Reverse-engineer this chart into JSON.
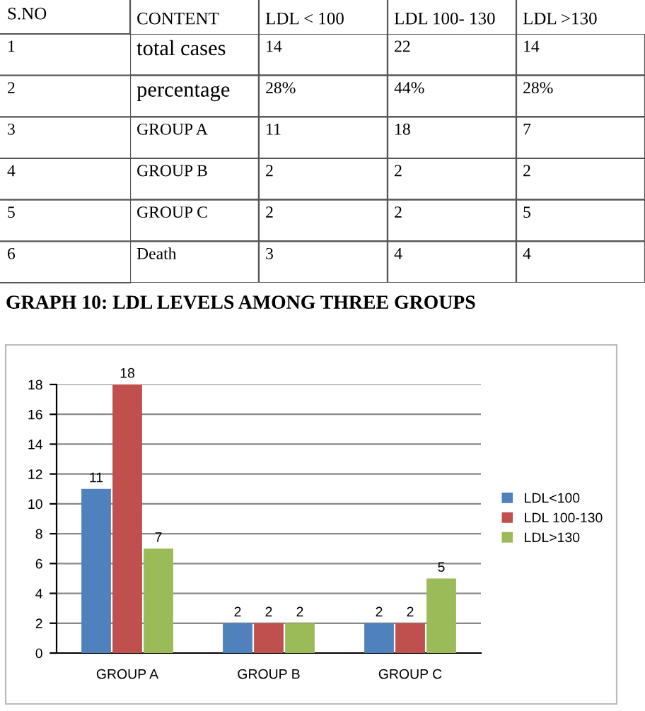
{
  "chart_data": [
    {
      "type": "heatmap",
      "ylabel": "S.NO",
      "categories": [
        "CONTENT",
        "LDL < 100",
        "LDL 100- 130",
        "LDL >130"
      ],
      "y_categories": [
        "1",
        "2",
        "3",
        "4",
        "5",
        "6"
      ],
      "cells": [
        [
          null,
          null,
          null,
          null
        ],
        [
          null,
          null,
          null,
          null
        ],
        [
          null,
          null,
          null,
          null
        ],
        [
          null,
          null,
          null,
          null
        ],
        [
          null,
          null,
          null,
          null
        ],
        [
          null,
          null,
          null,
          null
        ]
      ],
      "cell_labels": [
        [
          "total cases",
          "14",
          "22",
          "14"
        ],
        [
          "percentage",
          "28%",
          "44%",
          "28%"
        ],
        [
          "GROUP A",
          "11",
          "18",
          "7"
        ],
        [
          "GROUP B",
          "2",
          "2",
          "2"
        ],
        [
          "GROUP C",
          "2",
          "2",
          "5"
        ],
        [
          "Death",
          "3",
          "4",
          "4"
        ]
      ],
      "color": "#ffffff"
    },
    {
      "type": "bar",
      "title": "GRAPH 10: LDL LEVELS AMONG THREE GROUPS",
      "categories": [
        "GROUP A",
        "GROUP B",
        "GROUP C"
      ],
      "series": [
        {
          "name": "LDL<100",
          "color": "#4f81bd",
          "values": [
            11,
            2,
            2
          ]
        },
        {
          "name": "LDL 100-130",
          "color": "#c0504d",
          "values": [
            18,
            2,
            2
          ]
        },
        {
          "name": "LDL>130",
          "color": "#9bbb59",
          "values": [
            7,
            2,
            5
          ]
        }
      ],
      "ylim": [
        0,
        18
      ],
      "yticks": [
        0,
        2,
        4,
        6,
        8,
        10,
        12,
        14,
        16,
        18
      ],
      "grid": "y",
      "legend": "right",
      "data_labels": true
    }
  ]
}
